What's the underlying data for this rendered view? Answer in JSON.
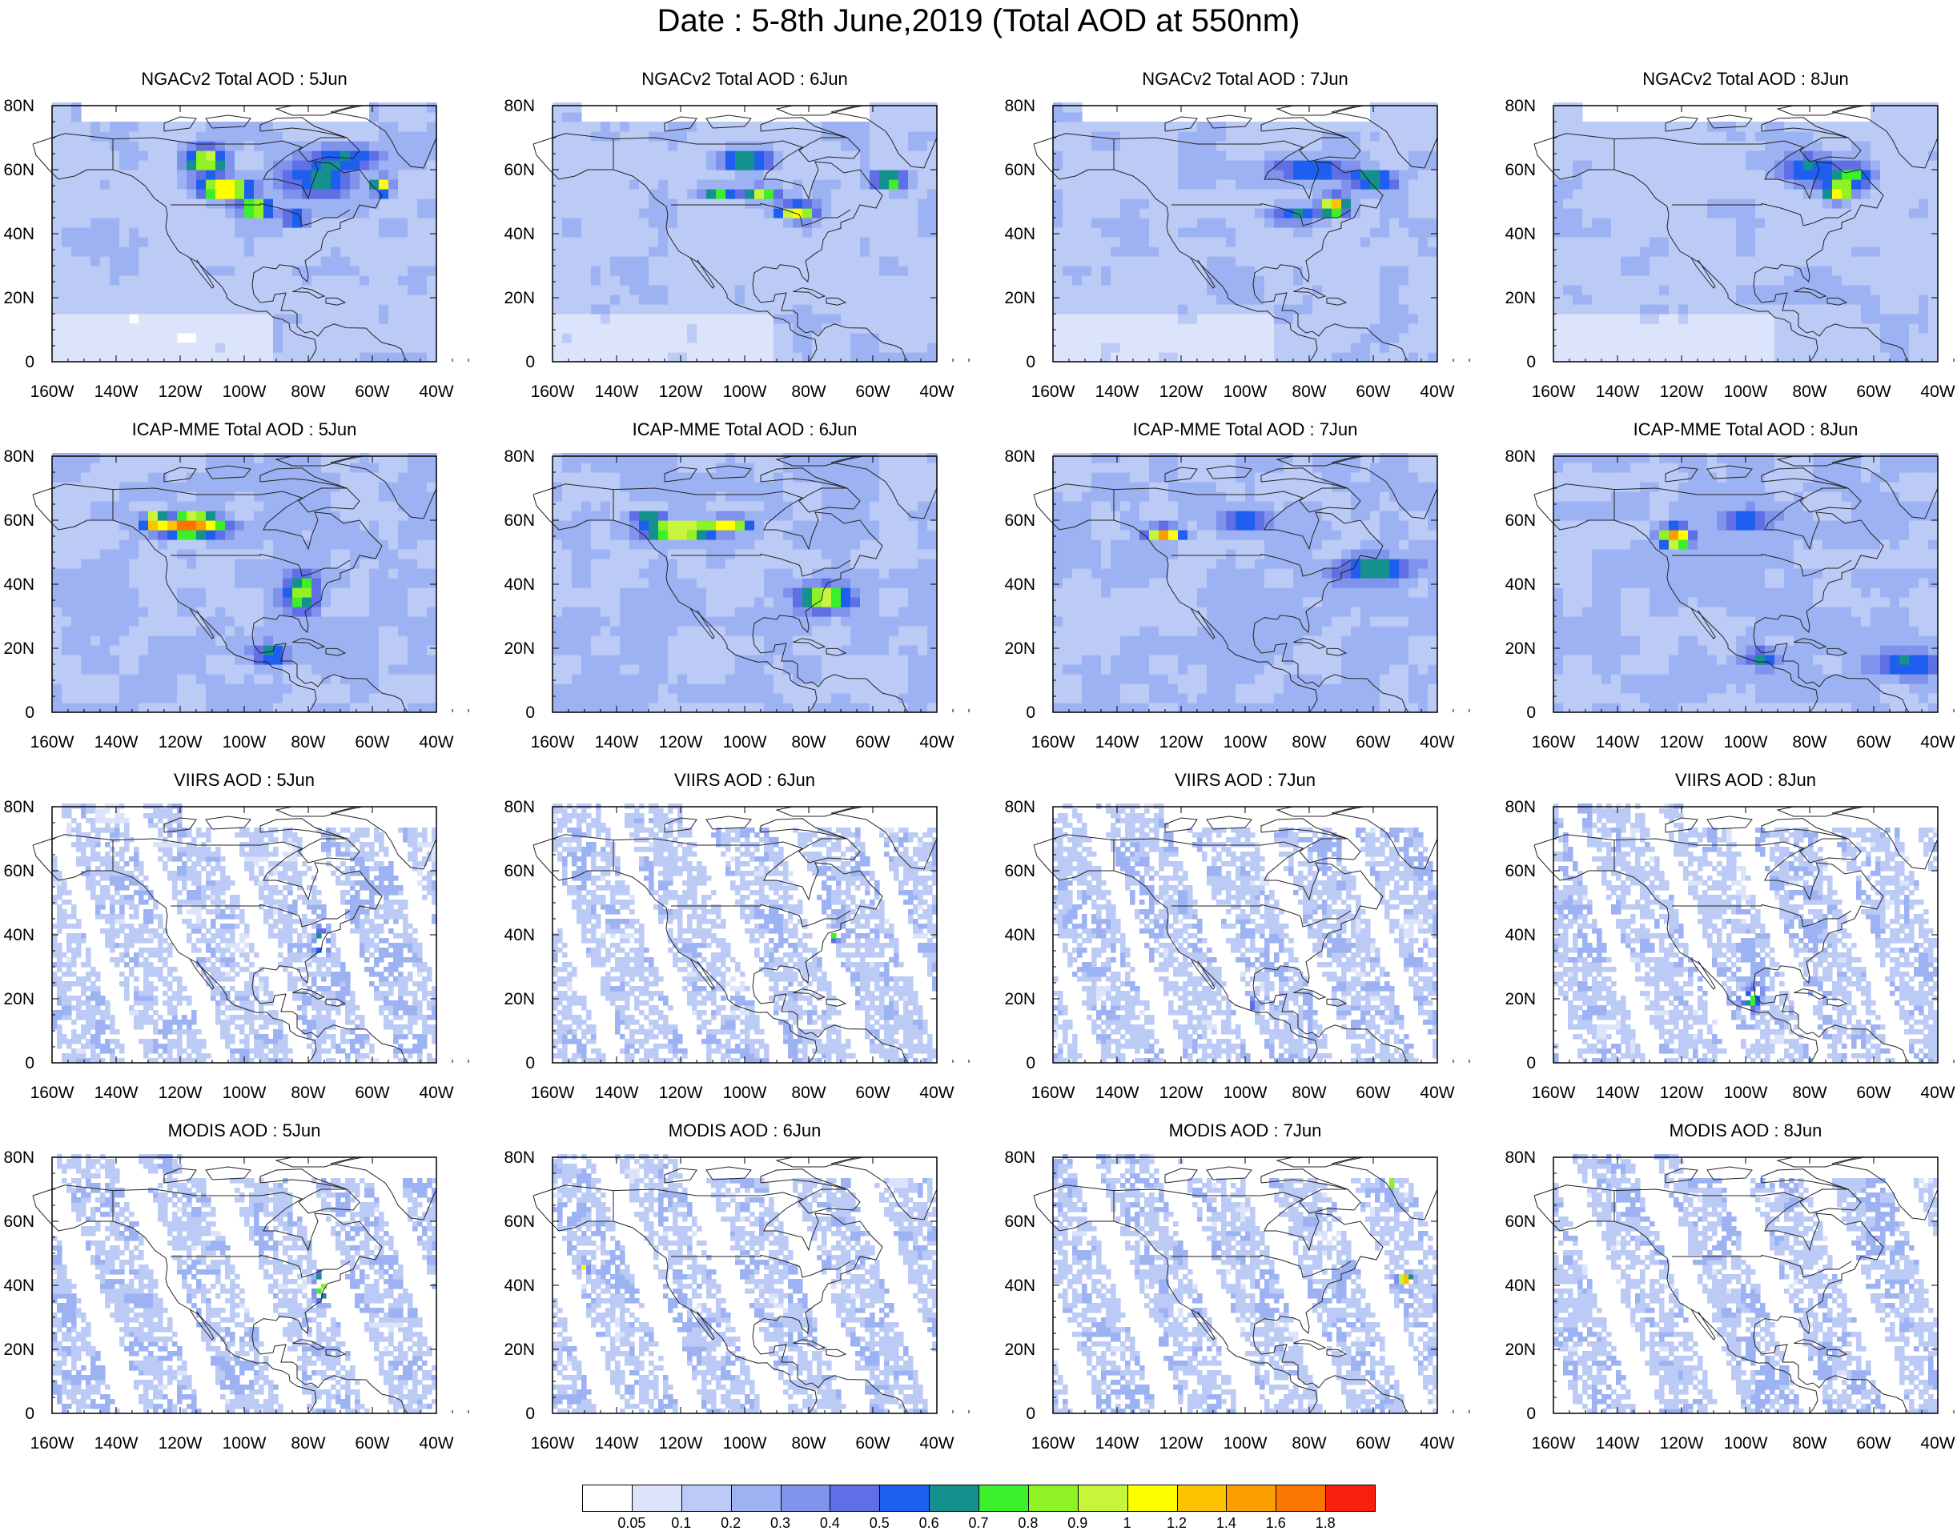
{
  "title": "Date : 5-8th June,2019 (Total AOD at 550nm)",
  "axes": {
    "lon_ticks": [
      "160W",
      "140W",
      "120W",
      "100W",
      "80W",
      "60W",
      "40W"
    ],
    "lat_ticks": [
      "80N",
      "60N",
      "40N",
      "20N",
      "0"
    ],
    "lon_range": [
      -160,
      -40
    ],
    "lat_range": [
      0,
      80
    ]
  },
  "rows": [
    {
      "source": "NGACv2 Total AOD",
      "kind": "model",
      "titles": [
        "NGACv2 Total AOD : 5Jun",
        "NGACv2 Total AOD : 6Jun",
        "NGACv2 Total AOD : 7Jun",
        "NGACv2 Total AOD : 8Jun"
      ]
    },
    {
      "source": "ICAP-MME Total AOD",
      "kind": "model",
      "titles": [
        "ICAP-MME Total AOD : 5Jun",
        "ICAP-MME Total AOD : 6Jun",
        "ICAP-MME Total AOD : 7Jun",
        "ICAP-MME Total AOD : 8Jun"
      ]
    },
    {
      "source": "VIIRS AOD",
      "kind": "satellite",
      "titles": [
        "VIIRS AOD : 5Jun",
        "VIIRS AOD : 6Jun",
        "VIIRS AOD : 7Jun",
        "VIIRS AOD : 8Jun"
      ]
    },
    {
      "source": "MODIS AOD",
      "kind": "satellite",
      "titles": [
        "MODIS AOD : 5Jun",
        "MODIS AOD : 6Jun",
        "MODIS AOD : 7Jun",
        "MODIS AOD : 8Jun"
      ]
    }
  ],
  "colorbar": {
    "labels": [
      "0.05",
      "0.1",
      "0.2",
      "0.3",
      "0.4",
      "0.5",
      "0.6",
      "0.7",
      "0.8",
      "0.9",
      "1",
      "1.2",
      "1.4",
      "1.6",
      "1.8"
    ],
    "colors": [
      "#ffffff",
      "#dce4fb",
      "#bccbf6",
      "#9db2f2",
      "#7f93ec",
      "#5f6fe6",
      "#1e5ff0",
      "#14908e",
      "#3bf02a",
      "#8ef224",
      "#c6f53c",
      "#ffff00",
      "#fbc300",
      "#fb9f00",
      "#fb7600",
      "#fa1f0c"
    ]
  }
}
